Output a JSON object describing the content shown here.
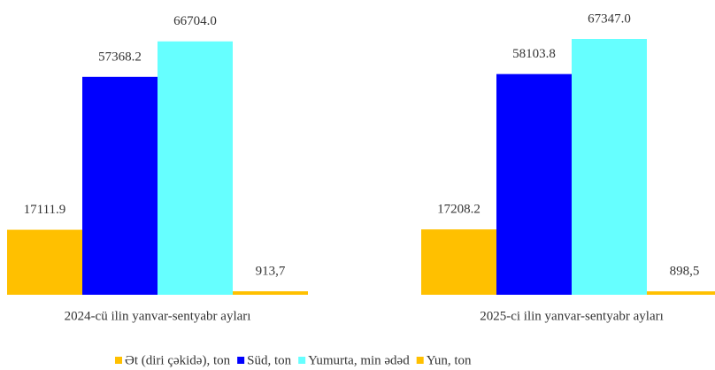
{
  "chart_data": {
    "type": "bar",
    "categories": [
      "2024-cü ilin yanvar-sentyabr ayları",
      "2025-ci ilin yanvar-sentyabr ayları"
    ],
    "series": [
      {
        "name": "Ət (diri çəkidə), ton",
        "color": "#FFC000",
        "values": [
          17111.9,
          17208.2
        ],
        "value_labels": [
          "17111.9",
          "17208.2"
        ]
      },
      {
        "name": "Süd, ton",
        "color": "#0000FF",
        "values": [
          57368.2,
          58103.8
        ],
        "value_labels": [
          "57368.2",
          "58103.8"
        ]
      },
      {
        "name": "Yumurta, min ədəd",
        "color": "#66FFFF",
        "values": [
          66704.0,
          67347.0
        ],
        "value_labels": [
          "66704.0",
          "67347.0"
        ]
      },
      {
        "name": "Yun, ton",
        "color": "#FFC000",
        "values": [
          913.7,
          898.5
        ],
        "value_labels": [
          "913,7",
          "898,5"
        ]
      }
    ]
  }
}
